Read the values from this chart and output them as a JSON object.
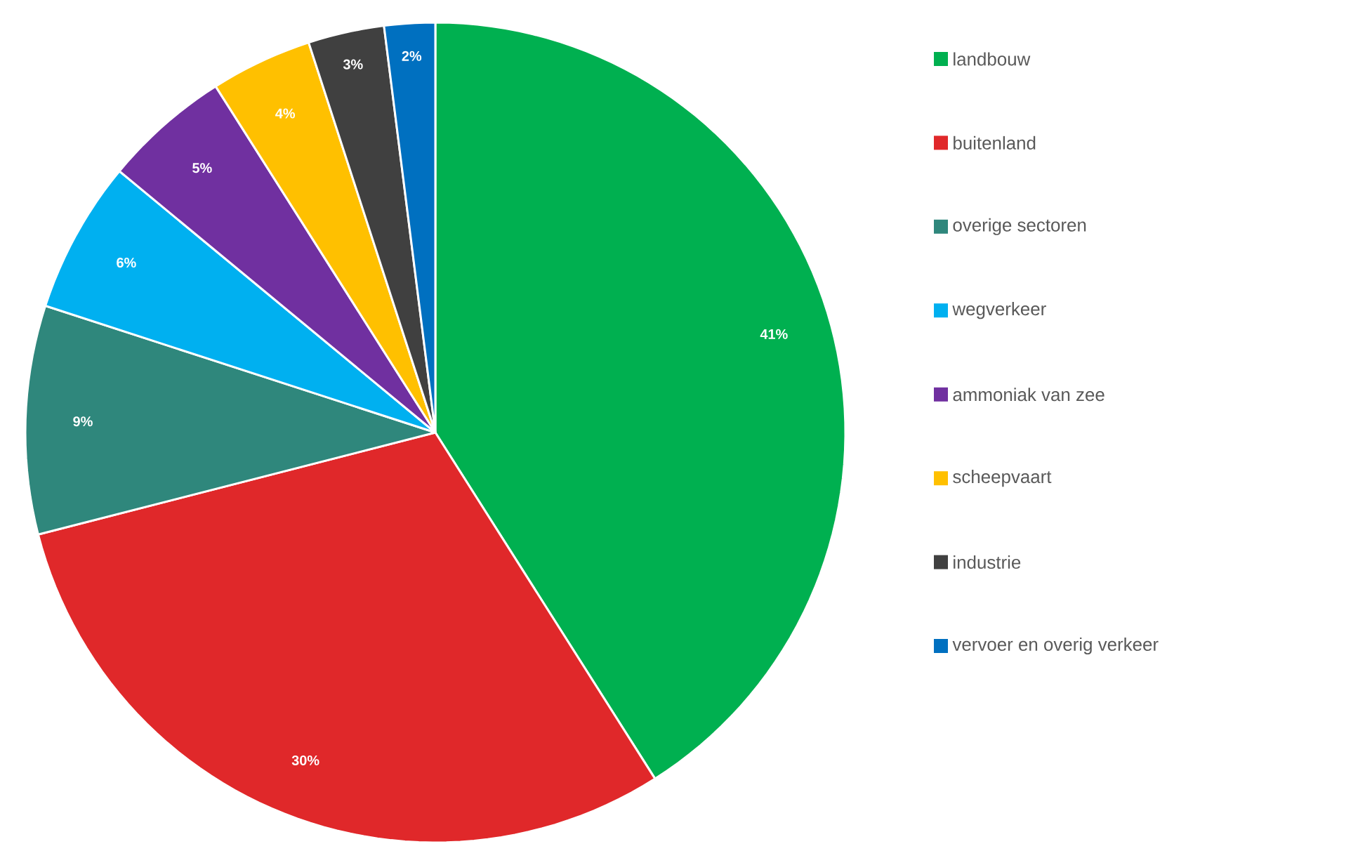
{
  "chart_data": {
    "type": "pie",
    "categories": [
      "landbouw",
      "buitenland",
      "overige sectoren",
      "wegverkeer",
      "ammoniak van zee",
      "scheepvaart",
      "industrie",
      "vervoer en overig verkeer"
    ],
    "values": [
      41,
      30,
      9,
      6,
      5,
      4,
      3,
      2
    ],
    "colors": [
      "#00b050",
      "#e0282a",
      "#2f877c",
      "#00b0f0",
      "#7030a0",
      "#ffc000",
      "#404040",
      "#0070c0"
    ],
    "value_labels": [
      "41%",
      "30%",
      "9%",
      "6%",
      "5%",
      "4%",
      "3%",
      "2%"
    ],
    "legend": "right"
  }
}
